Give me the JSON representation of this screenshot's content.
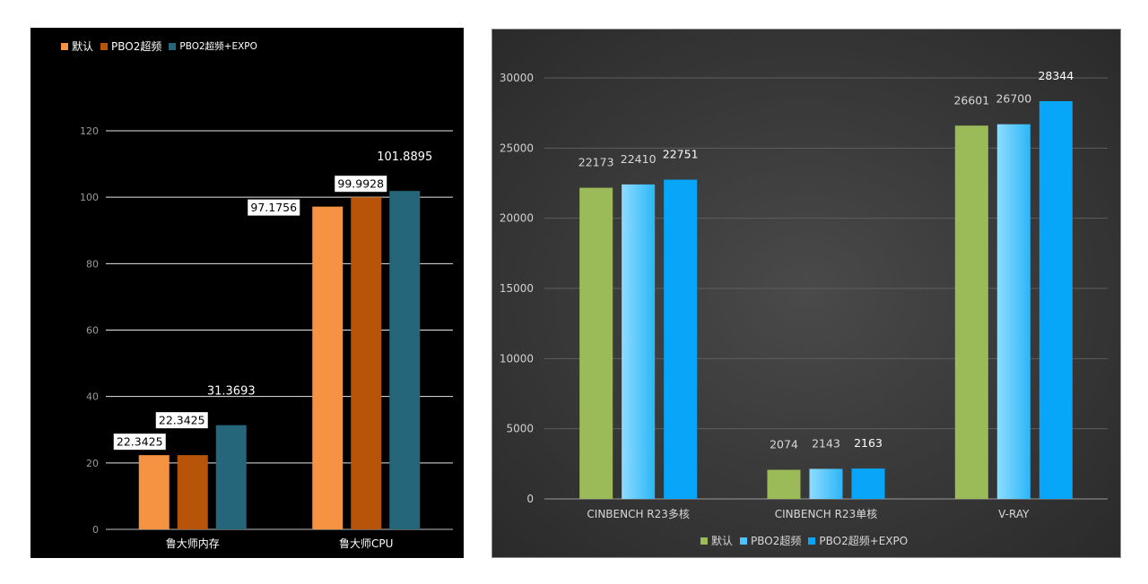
{
  "chart_data": [
    {
      "type": "bar",
      "title": "",
      "categories": [
        "鲁大师内存",
        "鲁大师CPU"
      ],
      "series": [
        {
          "name": "默认",
          "values": [
            22.3425,
            97.1756
          ],
          "labels": [
            "22.3425",
            "97.1756"
          ],
          "color": "#f59343"
        },
        {
          "name": "PBO2超频",
          "values": [
            22.3425,
            99.9928
          ],
          "labels": [
            "22.3425",
            "99.9928"
          ],
          "color": "#b8530a"
        },
        {
          "name": "PBO2超频+EXPO",
          "values": [
            31.3693,
            101.8895
          ],
          "labels": [
            "31.3693",
            "101.8895"
          ],
          "color": "#25667a"
        }
      ],
      "ylim": [
        0,
        120
      ],
      "yticks": [
        "0",
        "20",
        "40",
        "60",
        "80",
        "100",
        "120"
      ],
      "ytick_values": [
        0,
        20,
        40,
        60,
        80,
        100,
        120
      ],
      "grid": true,
      "legend": "top-left",
      "background": "#000000"
    },
    {
      "type": "bar",
      "title": "",
      "categories": [
        "CINBENCH R23多核",
        "CINBENCH R23单核",
        "V-RAY"
      ],
      "series": [
        {
          "name": "默认",
          "values": [
            22173,
            2074,
            26601
          ],
          "labels": [
            "22173",
            "2074",
            "26601"
          ],
          "color": "#9bbb59"
        },
        {
          "name": "PBO2超频",
          "values": [
            22410,
            2143,
            26700
          ],
          "labels": [
            "22410",
            "2143",
            "26700"
          ],
          "color": "#4cc3ff"
        },
        {
          "name": "PBO2超频+EXPO",
          "values": [
            22751,
            2163,
            28344
          ],
          "labels": [
            "22751",
            "2163",
            "28344"
          ],
          "color": "#08a6f8"
        }
      ],
      "ylim": [
        0,
        30000
      ],
      "yticks": [
        "0",
        "5000",
        "10000",
        "15000",
        "20000",
        "25000",
        "30000"
      ],
      "ytick_values": [
        0,
        5000,
        10000,
        15000,
        20000,
        25000,
        30000
      ],
      "grid": true,
      "legend": "bottom",
      "background": "#3c3c3c"
    }
  ]
}
